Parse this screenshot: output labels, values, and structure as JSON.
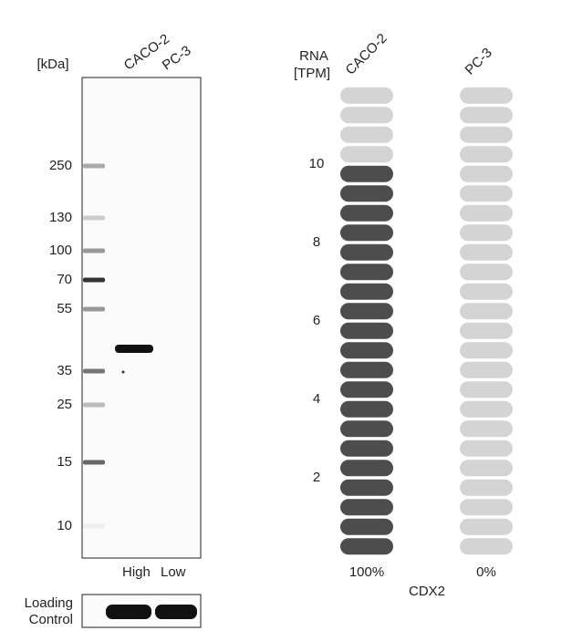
{
  "western_blot": {
    "unit_label": "[kDa]",
    "lanes": [
      "CACO-2",
      "PC-3"
    ],
    "markers": [
      250,
      130,
      100,
      70,
      55,
      35,
      25,
      15,
      10
    ],
    "expression_labels": [
      "High",
      "Low"
    ],
    "loading_control": [
      "Loading",
      "Control"
    ]
  },
  "rna": {
    "axis_label": [
      "RNA",
      "[TPM]"
    ],
    "ticks": [
      2,
      4,
      6,
      8,
      10
    ],
    "gene": "CDX2",
    "samples": [
      {
        "name": "CACO-2",
        "tpm": 10,
        "percent": "100%",
        "color": "#4d4d4d"
      },
      {
        "name": "PC-3",
        "tpm": 0,
        "percent": "0%",
        "color": "#4d4d4d"
      }
    ]
  }
}
